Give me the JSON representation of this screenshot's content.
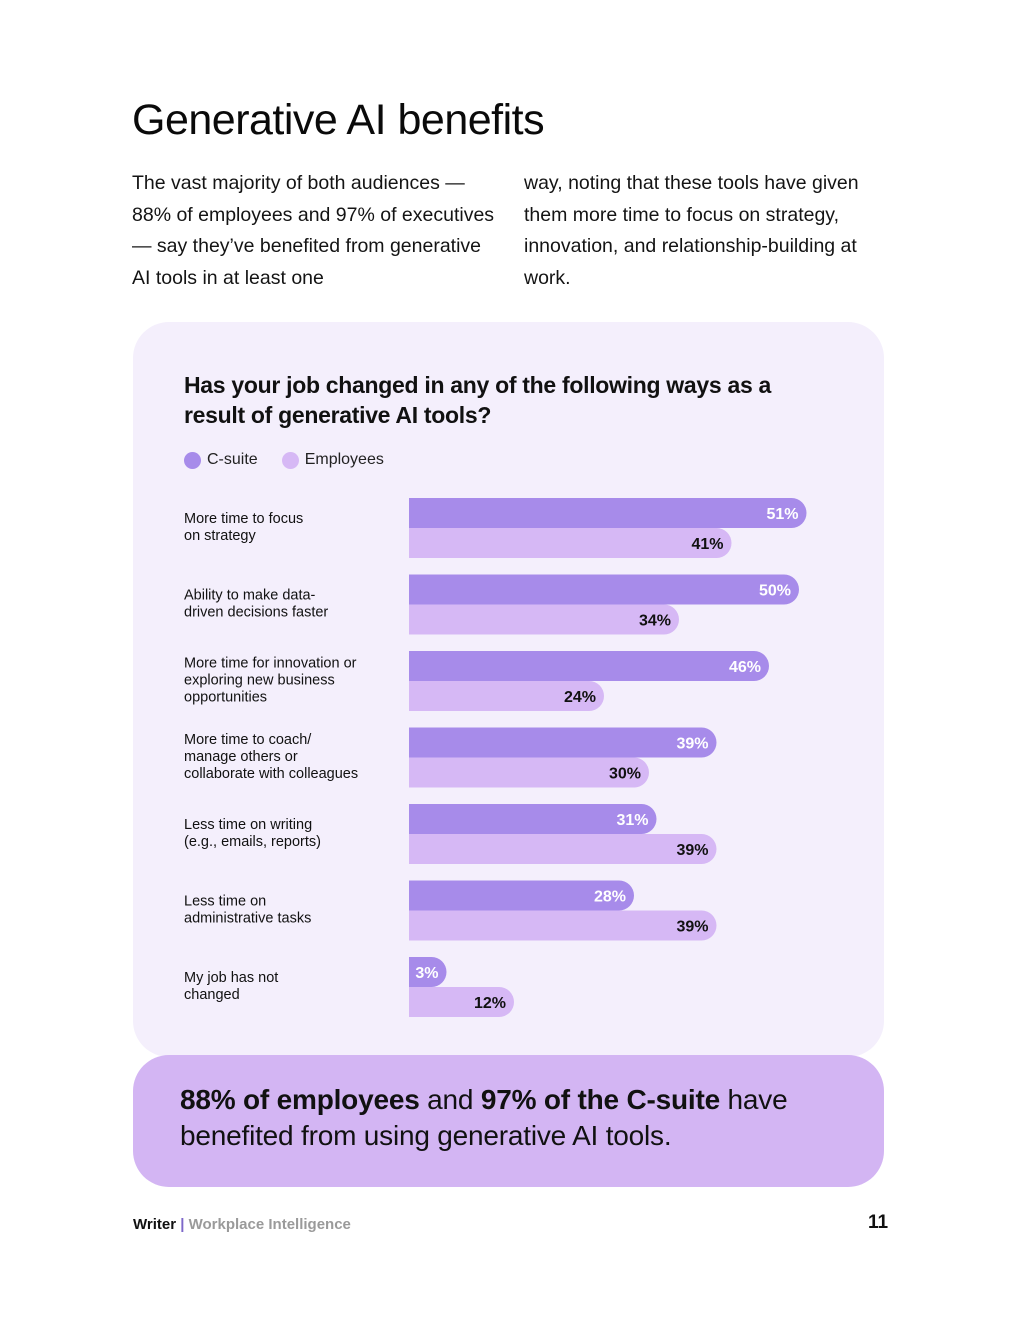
{
  "page": {
    "title": "Generative AI benefits",
    "intro_left": "The vast majority of both audiences — 88% of employees and 97% of executives — say they’ve benefited from generative AI tools in at least one",
    "intro_right": "way, noting that these tools have given them more time to focus on strategy, innovation, and relationship-building at work.",
    "page_number": "11"
  },
  "colors": {
    "csuite": "#a78bea",
    "employees": "#d6b8f5",
    "card_bg": "#f4effc",
    "callout_bg": "#d3b5f3"
  },
  "chart_data": {
    "type": "bar",
    "orientation": "horizontal",
    "title": "Has your job changed in any of the following ways as a result of generative AI tools?",
    "legend": [
      "C-suite",
      "Employees"
    ],
    "xlim": [
      0,
      100
    ],
    "unit": "%",
    "categories": [
      [
        "More time to focus",
        "on strategy"
      ],
      [
        "Ability to make data-",
        "driven decisions faster"
      ],
      [
        "More time for innovation or",
        "exploring new business",
        "opportunities"
      ],
      [
        "More time to coach/",
        "manage others or",
        "collaborate with colleagues"
      ],
      [
        "Less time on writing",
        "(e.g., emails, reports)"
      ],
      [
        "Less time on",
        "administrative tasks"
      ],
      [
        "My job has not",
        "changed"
      ]
    ],
    "series": [
      {
        "name": "C-suite",
        "values": [
          51,
          50,
          46,
          39,
          31,
          28,
          3
        ]
      },
      {
        "name": "Employees",
        "values": [
          41,
          34,
          24,
          30,
          39,
          39,
          12
        ]
      }
    ]
  },
  "callout": {
    "part1_bold": "88% of employees",
    "part2": " and ",
    "part3_bold": "97% of the C-suite",
    "part4": " have benefited from using generative AI tools."
  },
  "footer": {
    "brand": "Writer",
    "separator": " | ",
    "subtitle": "Workplace Intelligence"
  }
}
